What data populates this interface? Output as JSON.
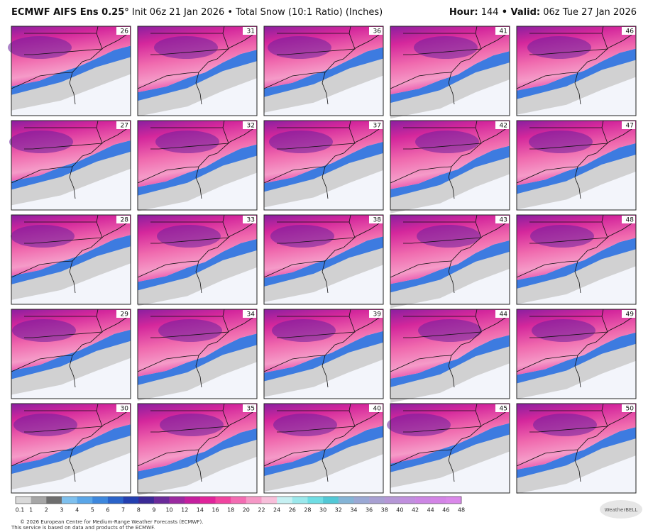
{
  "header": {
    "model": "ECMWF AIFS Ens 0.25°",
    "subtitle": "Init 06z 21 Jan 2026 • Total Snow (10:1 Ratio) (Inches)",
    "hour_label": "Hour:",
    "hour_value": "144",
    "valid_label": "• Valid:",
    "valid_value": "06z Tue 27 Jan 2026"
  },
  "panels": [
    "26",
    "31",
    "36",
    "41",
    "46",
    "27",
    "32",
    "37",
    "42",
    "47",
    "28",
    "33",
    "38",
    "43",
    "48",
    "29",
    "34",
    "39",
    "44",
    "49",
    "30",
    "35",
    "40",
    "45",
    "50"
  ],
  "colorbar": {
    "labels": [
      "0.1",
      "1",
      "2",
      "3",
      "4",
      "5",
      "6",
      "7",
      "8",
      "9",
      "10",
      "12",
      "14",
      "16",
      "18",
      "20",
      "22",
      "24",
      "26",
      "28",
      "30",
      "32",
      "34",
      "36",
      "38",
      "40",
      "42",
      "44",
      "46",
      "48"
    ],
    "colors": [
      "#d9d9d9",
      "#a6a6a6",
      "#6e6e6e",
      "#7ec0ee",
      "#5aa6e8",
      "#3d87dd",
      "#2a63c9",
      "#233fb0",
      "#3b2a96",
      "#6a2a9a",
      "#9a2aa0",
      "#c41f9e",
      "#e0249a",
      "#f0449f",
      "#f36cb2",
      "#f598c6",
      "#f7bfda",
      "#c6f0f2",
      "#9be8ec",
      "#6fdde4",
      "#52c8d6",
      "#84b4d6",
      "#9aa8d4",
      "#a8a0d2",
      "#b597d6",
      "#c08fde",
      "#cc86e4",
      "#d384e6",
      "#da88ea"
    ]
  },
  "footer": {
    "line1": "© 2026 European Centre for Medium-Range Weather Forecasts (ECMWF).",
    "line2": "This service is based on data and products of the ECMWF.",
    "logo": "WeatherBELL"
  }
}
